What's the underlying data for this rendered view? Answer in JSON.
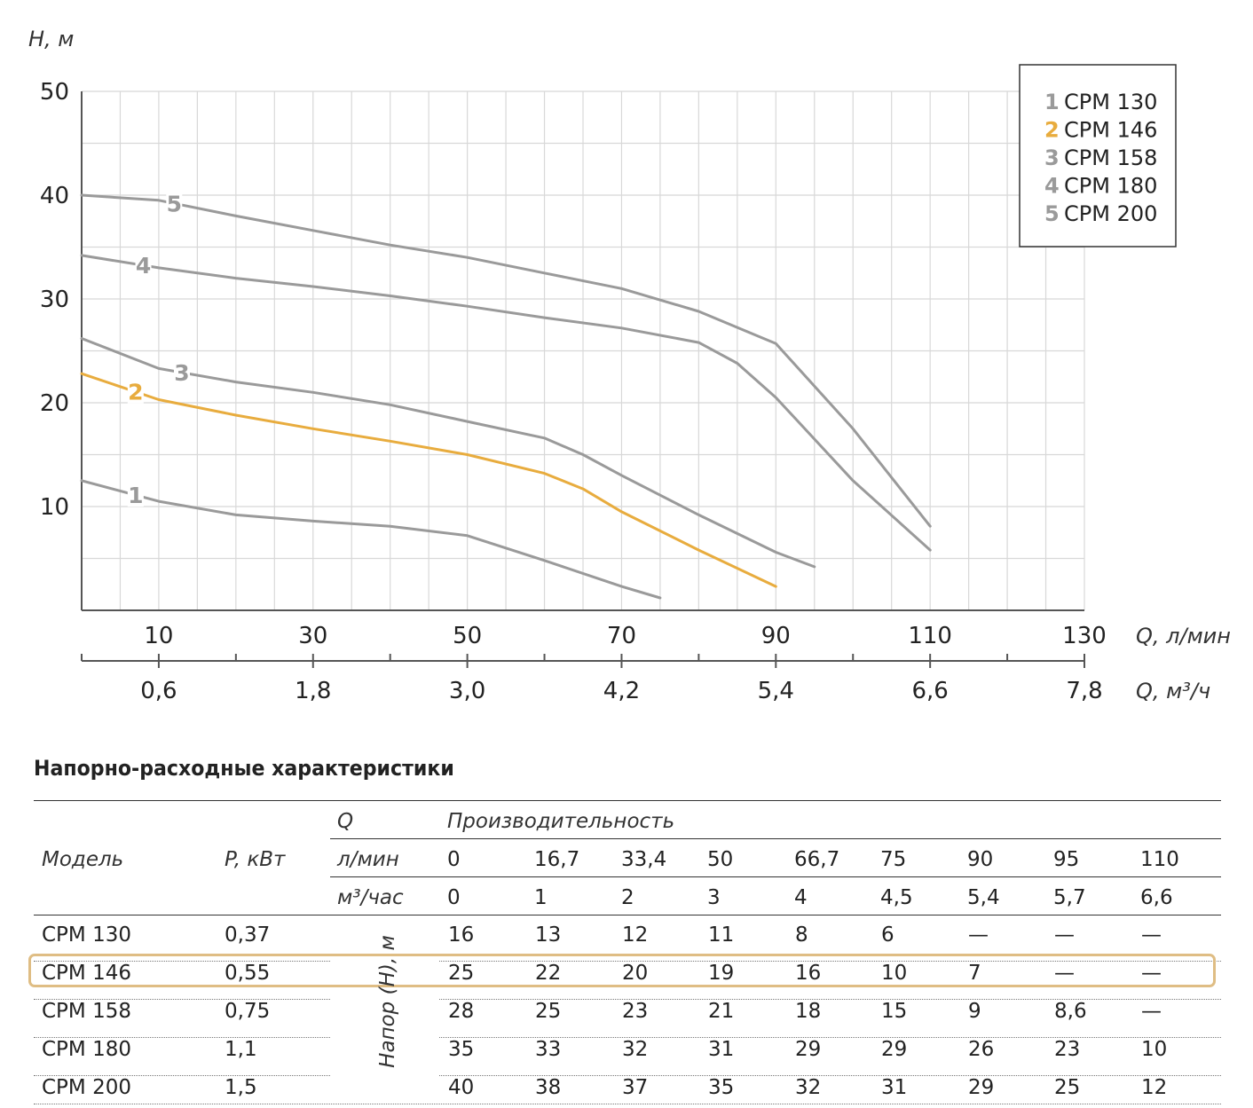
{
  "chart_data": {
    "type": "line",
    "ylabel": "H, м",
    "xlabel": "Q, л/мин",
    "xlabel2": "Q, м³/ч",
    "xlim": [
      0,
      130
    ],
    "ylim": [
      0,
      50
    ],
    "y_ticks": [
      "10",
      "20",
      "30",
      "40",
      "50"
    ],
    "y_tick_values": [
      10,
      20,
      30,
      40,
      50
    ],
    "x_ticks": [
      "10",
      "30",
      "50",
      "70",
      "90",
      "110",
      "130"
    ],
    "x_tick_values": [
      10,
      30,
      50,
      70,
      90,
      110,
      130
    ],
    "x2_ticks": [
      "0,6",
      "1,8",
      "3,0",
      "4,2",
      "5,4",
      "6,6",
      "7,8"
    ],
    "grid": true,
    "legend_position": "top-right",
    "series": [
      {
        "name": "CPM 130",
        "label": "1",
        "color": "#9a9a9a",
        "points": [
          [
            0,
            12.5
          ],
          [
            10,
            10.5
          ],
          [
            20,
            9.2
          ],
          [
            30,
            8.6
          ],
          [
            40,
            8.1
          ],
          [
            50,
            7.2
          ],
          [
            60,
            4.8
          ],
          [
            70,
            2.3
          ],
          [
            75,
            1.2
          ]
        ]
      },
      {
        "name": "CPM 146",
        "label": "2",
        "color": "#e8ac3e",
        "points": [
          [
            0,
            22.8
          ],
          [
            10,
            20.3
          ],
          [
            20,
            18.8
          ],
          [
            30,
            17.5
          ],
          [
            40,
            16.3
          ],
          [
            50,
            15.0
          ],
          [
            60,
            13.2
          ],
          [
            65,
            11.7
          ],
          [
            70,
            9.5
          ],
          [
            80,
            5.8
          ],
          [
            90,
            2.3
          ]
        ]
      },
      {
        "name": "CPM 158",
        "label": "3",
        "color": "#9a9a9a",
        "points": [
          [
            0,
            26.2
          ],
          [
            10,
            23.3
          ],
          [
            20,
            22.0
          ],
          [
            30,
            21.0
          ],
          [
            40,
            19.8
          ],
          [
            50,
            18.2
          ],
          [
            60,
            16.6
          ],
          [
            65,
            15.0
          ],
          [
            70,
            13.0
          ],
          [
            80,
            9.2
          ],
          [
            90,
            5.6
          ],
          [
            95,
            4.2
          ]
        ]
      },
      {
        "name": "CPM 180",
        "label": "4",
        "color": "#9a9a9a",
        "points": [
          [
            0,
            34.2
          ],
          [
            10,
            33.0
          ],
          [
            20,
            32.0
          ],
          [
            30,
            31.2
          ],
          [
            40,
            30.3
          ],
          [
            50,
            29.3
          ],
          [
            60,
            28.2
          ],
          [
            70,
            27.2
          ],
          [
            80,
            25.8
          ],
          [
            85,
            23.8
          ],
          [
            90,
            20.5
          ],
          [
            100,
            12.5
          ],
          [
            110,
            5.8
          ]
        ]
      },
      {
        "name": "CPM 200",
        "label": "5",
        "color": "#9a9a9a",
        "points": [
          [
            0,
            40.0
          ],
          [
            10,
            39.5
          ],
          [
            20,
            38.0
          ],
          [
            30,
            36.6
          ],
          [
            40,
            35.2
          ],
          [
            50,
            34.0
          ],
          [
            60,
            32.5
          ],
          [
            70,
            31.0
          ],
          [
            80,
            28.8
          ],
          [
            90,
            25.7
          ],
          [
            100,
            17.5
          ],
          [
            110,
            8.1
          ]
        ]
      }
    ]
  },
  "table": {
    "title": "Напорно-расходные характеристики",
    "header": {
      "model": "Модель",
      "power": "P, кВт",
      "q": "Q",
      "performance": "Производительность",
      "lmin": "л/мин",
      "m3h": "м³/час",
      "head": "Напор (Н), м"
    },
    "lmin_values": [
      "0",
      "16,7",
      "33,4",
      "50",
      "66,7",
      "75",
      "90",
      "95",
      "110"
    ],
    "m3h_values": [
      "0",
      "1",
      "2",
      "3",
      "4",
      "4,5",
      "5,4",
      "5,7",
      "6,6"
    ],
    "rows": [
      {
        "model": "CPM 130",
        "power": "0,37",
        "values": [
          "16",
          "13",
          "12",
          "11",
          "8",
          "6",
          "—",
          "—",
          "—"
        ]
      },
      {
        "model": "CPM 146",
        "power": "0,55",
        "values": [
          "25",
          "22",
          "20",
          "19",
          "16",
          "10",
          "7",
          "—",
          "—"
        ],
        "highlighted": true
      },
      {
        "model": "CPM 158",
        "power": "0,75",
        "values": [
          "28",
          "25",
          "23",
          "21",
          "18",
          "15",
          "9",
          "8,6",
          "—"
        ]
      },
      {
        "model": "CPM 180",
        "power": "1,1",
        "values": [
          "35",
          "33",
          "32",
          "31",
          "29",
          "29",
          "26",
          "23",
          "10"
        ]
      },
      {
        "model": "CPM 200",
        "power": "1,5",
        "values": [
          "40",
          "38",
          "37",
          "35",
          "32",
          "31",
          "29",
          "25",
          "12"
        ]
      }
    ],
    "highlight_color": "#dfbd84"
  }
}
